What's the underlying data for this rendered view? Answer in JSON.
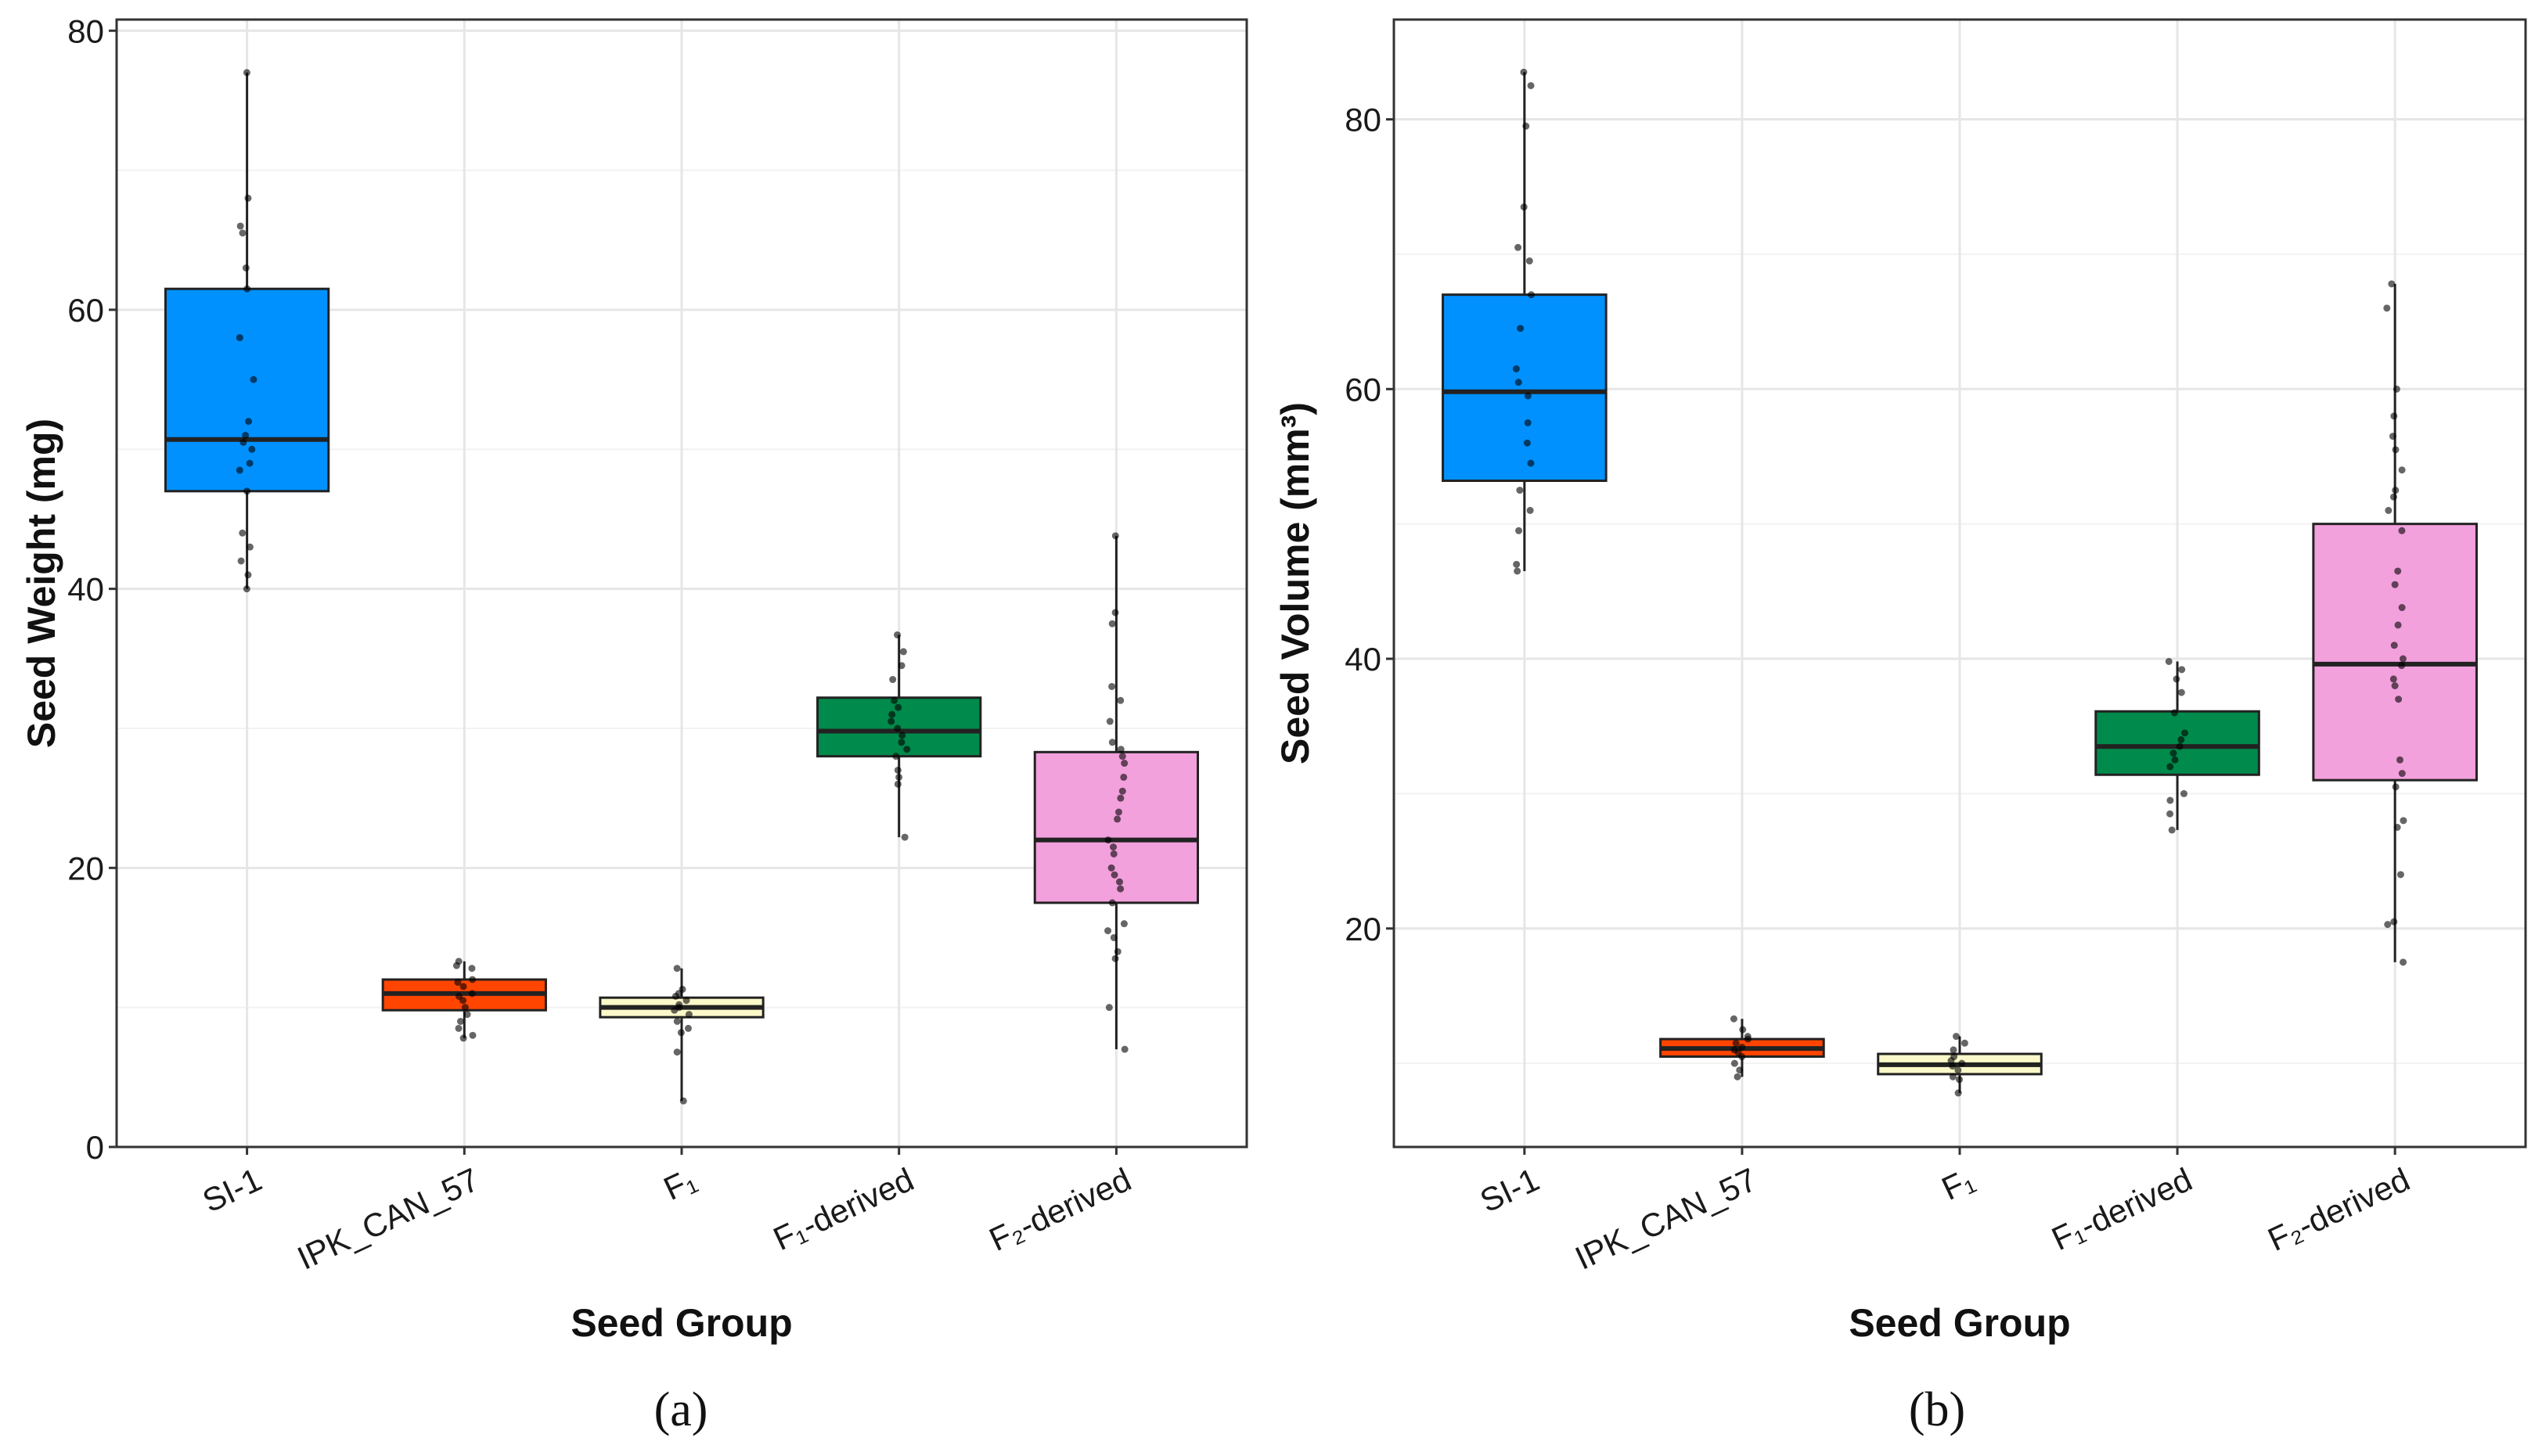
{
  "chart_data": [
    {
      "type": "box",
      "caption": "(a)",
      "xlabel": "Seed Group",
      "ylabel": "Seed Weight (mg)",
      "ylim": [
        0,
        80.8
      ],
      "yticks": [
        0,
        20,
        40,
        60,
        80
      ],
      "yminor": [
        10,
        30,
        50,
        70
      ],
      "grid": true,
      "categories": [
        "SI-1",
        "IPK_CAN_57",
        "F₁",
        "F₁-derived",
        "F₂-derived"
      ],
      "colors": [
        "#0091FF",
        "#FF4500",
        "#FBF8C9",
        "#008A4B",
        "#F2A1DD"
      ],
      "boxes": [
        {
          "min": 40,
          "q1": 47,
          "median": 50.7,
          "q3": 61.5,
          "max": 77
        },
        {
          "min": 7.8,
          "q1": 9.8,
          "median": 11,
          "q3": 12,
          "max": 13.3
        },
        {
          "min": 3.3,
          "q1": 9.3,
          "median": 10,
          "q3": 10.7,
          "max": 12.8
        },
        {
          "min": 22.2,
          "q1": 28,
          "median": 29.8,
          "q3": 32.2,
          "max": 36.7
        },
        {
          "min": 7,
          "q1": 17.5,
          "median": 22,
          "q3": 28.3,
          "max": 43.8
        }
      ],
      "points": [
        [
          77,
          68,
          66,
          65.5,
          63,
          61.5,
          58,
          55,
          52,
          51,
          50.5,
          50,
          49,
          48.5,
          47,
          44,
          43,
          42,
          41,
          40
        ],
        [
          13.3,
          13,
          12.8,
          12,
          11.8,
          11.5,
          11,
          10.8,
          10.5,
          10,
          9.5,
          9,
          8.5,
          8,
          7.8
        ],
        [
          12.8,
          11.3,
          11,
          10.8,
          10.5,
          10.2,
          10,
          9.8,
          9.5,
          9,
          8.5,
          8.2,
          6.8,
          3.3
        ],
        [
          36.7,
          35.5,
          34.5,
          33.5,
          32,
          31.5,
          31,
          30.5,
          30,
          29.5,
          29,
          28.5,
          28,
          27,
          26.5,
          26,
          22.2
        ],
        [
          43.8,
          38.3,
          37.5,
          33,
          32,
          30.5,
          29,
          28.5,
          28,
          27.5,
          26.5,
          25.5,
          25,
          24,
          23.5,
          22,
          21.5,
          21,
          20,
          19.5,
          19,
          18.5,
          17.5,
          16,
          15.5,
          15,
          14,
          13.5,
          10,
          7
        ]
      ]
    },
    {
      "type": "box",
      "caption": "(b)",
      "xlabel": "Seed Group",
      "ylabel": "Seed Volume (mm³)",
      "ylim": [
        3.8,
        87.4
      ],
      "yticks": [
        20,
        40,
        60,
        80
      ],
      "yminor": [
        10,
        30,
        50,
        70
      ],
      "grid": true,
      "categories": [
        "SI-1",
        "IPK_CAN_57",
        "F₁",
        "F₁-derived",
        "F₂-derived"
      ],
      "colors": [
        "#0091FF",
        "#FF4500",
        "#FBF8C9",
        "#008A4B",
        "#F2A1DD"
      ],
      "boxes": [
        {
          "min": 46.5,
          "q1": 53.2,
          "median": 59.8,
          "q3": 67,
          "max": 83.5
        },
        {
          "min": 9,
          "q1": 10.5,
          "median": 11.1,
          "q3": 11.8,
          "max": 13.3
        },
        {
          "min": 7.8,
          "q1": 9.2,
          "median": 9.9,
          "q3": 10.7,
          "max": 12
        },
        {
          "min": 27.3,
          "q1": 31.4,
          "median": 33.5,
          "q3": 36.1,
          "max": 39.8
        },
        {
          "min": 17.5,
          "q1": 31,
          "median": 39.6,
          "q3": 50,
          "max": 67.8
        }
      ],
      "points": [
        [
          83.5,
          82.5,
          79.5,
          73.5,
          70.5,
          69.5,
          67,
          64.5,
          61.5,
          60.5,
          59.5,
          57.5,
          56,
          54.5,
          52.5,
          51,
          49.5,
          47,
          46.5
        ],
        [
          13.3,
          12.5,
          12,
          11.8,
          11.5,
          11.2,
          11,
          10.8,
          10.5,
          10,
          9.5,
          9
        ],
        [
          12,
          11.5,
          11,
          10.5,
          10.2,
          10,
          9.8,
          9.5,
          9,
          8.8,
          7.8
        ],
        [
          39.8,
          39.2,
          38.5,
          37.5,
          36,
          34.5,
          34,
          33.5,
          33,
          32.5,
          32,
          30,
          29.5,
          28.5,
          27.3
        ],
        [
          67.8,
          66,
          60,
          58,
          56.5,
          55.5,
          54,
          52.5,
          52,
          51,
          49.5,
          46.5,
          45.5,
          43.8,
          42.5,
          41,
          40,
          39.5,
          38.5,
          38,
          37,
          32.5,
          31.5,
          30.5,
          28,
          27.5,
          24,
          20.5,
          20.3,
          17.5
        ]
      ]
    }
  ]
}
